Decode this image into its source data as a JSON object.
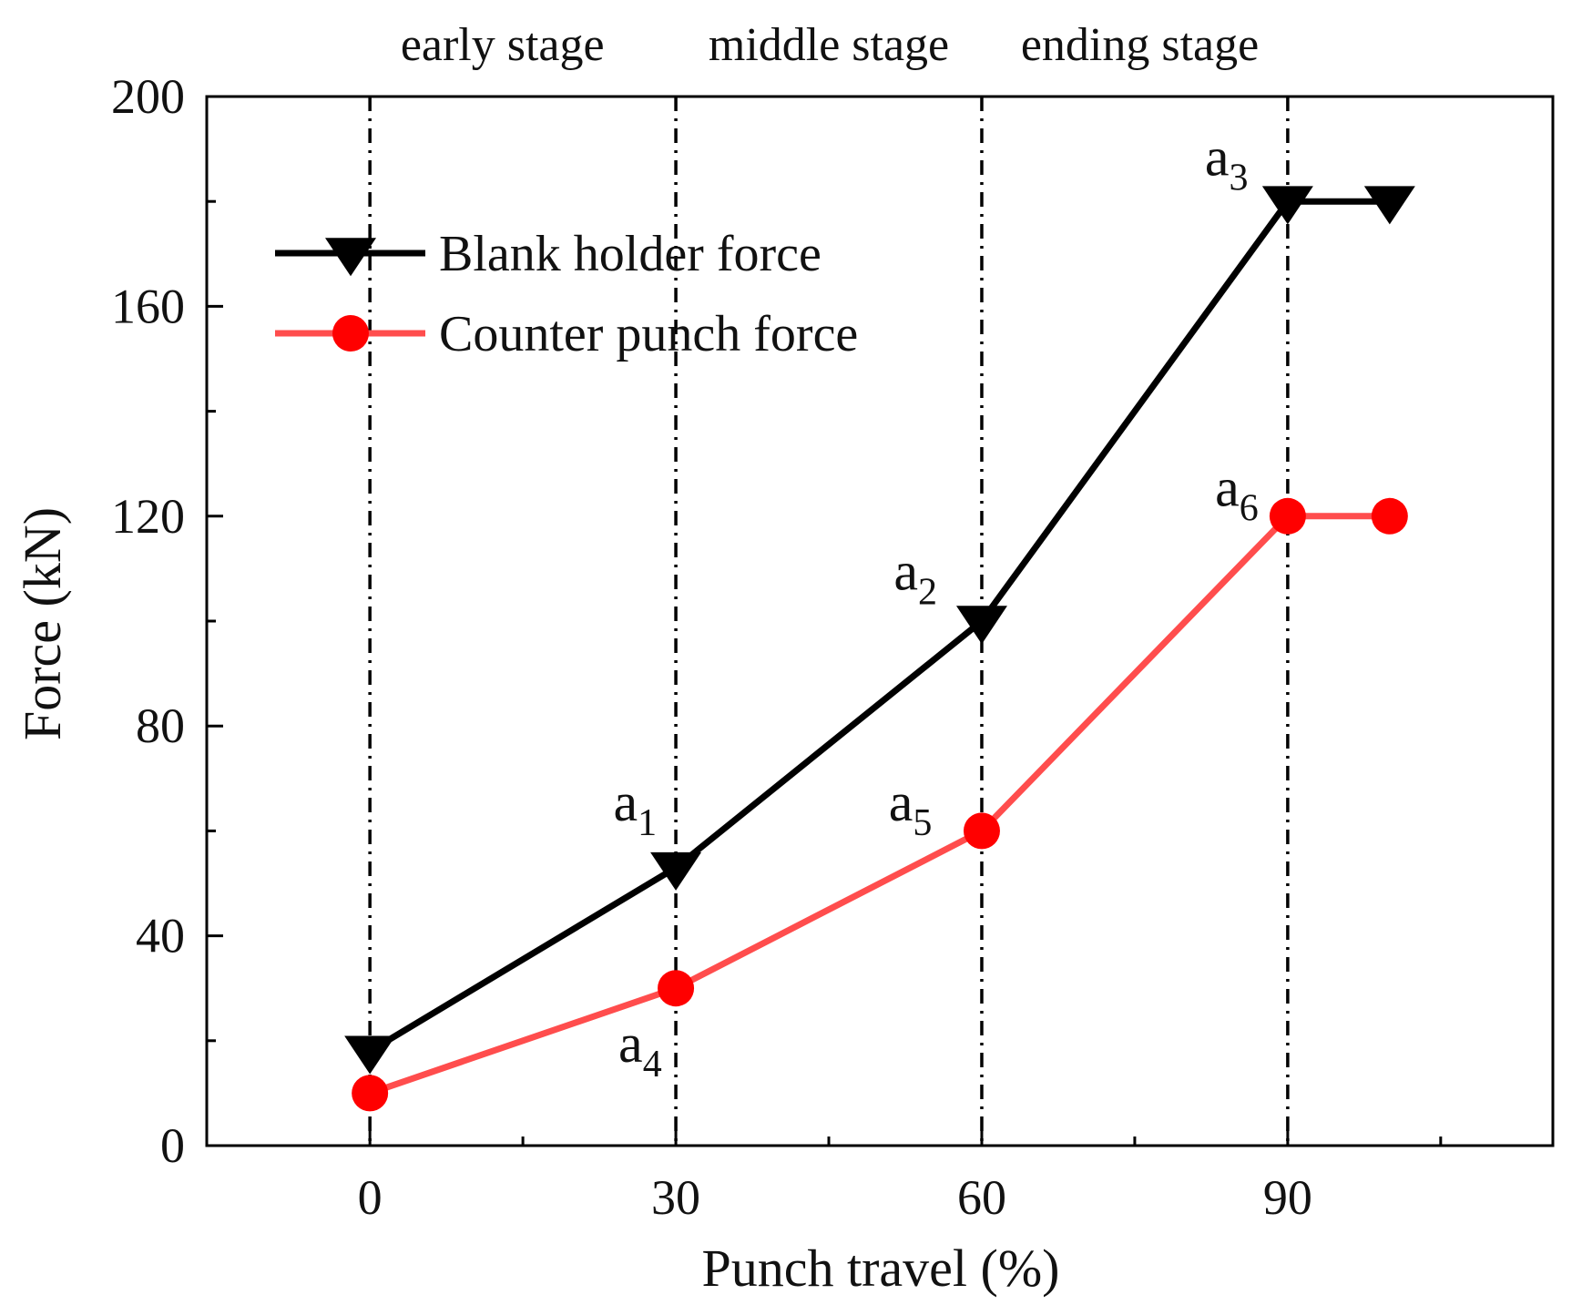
{
  "chart_data": {
    "type": "line",
    "xlabel": "Punch travel (%)",
    "ylabel": "Force (kN)",
    "xlim": [
      -16,
      116
    ],
    "ylim": [
      0,
      200
    ],
    "x_ticks": [
      0,
      30,
      60,
      90
    ],
    "x_minor_ticks": [
      15,
      45,
      75,
      105
    ],
    "y_ticks": [
      0,
      40,
      80,
      120,
      160,
      200
    ],
    "y_minor_ticks": [
      20,
      60,
      100,
      140,
      180
    ],
    "grid": false,
    "legend_position": "top-left",
    "stage_lines_x": [
      0,
      30,
      60,
      90
    ],
    "stage_labels": [
      {
        "text": "early stage",
        "x": 13
      },
      {
        "text": "middle stage",
        "x": 45
      },
      {
        "text": "ending stage",
        "x": 75.5
      }
    ],
    "series": [
      {
        "name": "Blank holder force",
        "color": "#000000",
        "marker": "triangle-down",
        "x": [
          0,
          30,
          60,
          90,
          100
        ],
        "values": [
          18,
          53,
          100,
          180,
          180
        ]
      },
      {
        "name": "Counter punch force",
        "color": "#ff4d4d",
        "marker_color": "#ff0000",
        "marker": "circle",
        "x": [
          0,
          30,
          60,
          90,
          100
        ],
        "values": [
          10,
          30,
          60,
          120,
          120
        ]
      }
    ],
    "annotations": [
      {
        "base": "a",
        "sub": "1",
        "x": 26,
        "y": 62
      },
      {
        "base": "a",
        "sub": "2",
        "x": 53.5,
        "y": 106
      },
      {
        "base": "a",
        "sub": "3",
        "x": 84,
        "y": 185
      },
      {
        "base": "a",
        "sub": "4",
        "x": 26.5,
        "y": 16
      },
      {
        "base": "a",
        "sub": "5",
        "x": 53,
        "y": 62
      },
      {
        "base": "a",
        "sub": "6",
        "x": 85,
        "y": 122
      }
    ]
  }
}
